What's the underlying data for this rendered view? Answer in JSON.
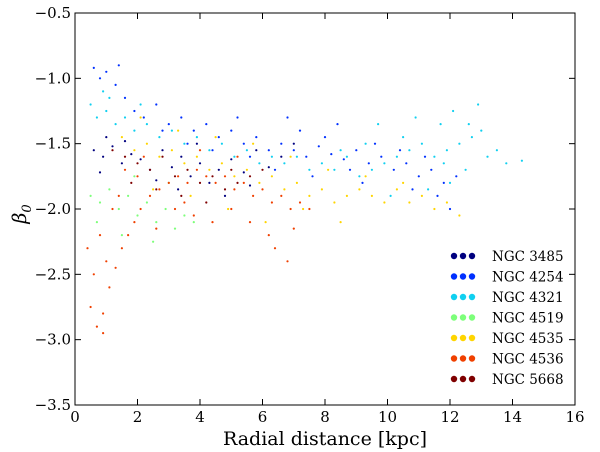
{
  "chart_data": {
    "type": "scatter",
    "title": "",
    "xlabel": "Radial distance [kpc]",
    "ylabel_symbol": "β",
    "ylabel_subscript": "0",
    "xlim": [
      0,
      16
    ],
    "ylim": [
      -3.5,
      -0.5
    ],
    "xticks": [
      0,
      2,
      4,
      6,
      8,
      10,
      12,
      14,
      16
    ],
    "yticks": [
      -0.5,
      -1.0,
      -1.5,
      -2.0,
      -2.5,
      -3.0,
      -3.5
    ],
    "xtick_labels": [
      "0",
      "2",
      "4",
      "6",
      "8",
      "10",
      "12",
      "14",
      "16"
    ],
    "ytick_labels": [
      "−0.5",
      "−1.0",
      "−1.5",
      "−2.0",
      "−2.5",
      "−3.0",
      "−3.5"
    ],
    "legend_position": "lower-right",
    "series": [
      {
        "name": "NGC 3485",
        "color": "#00007f",
        "points": [
          [
            0.6,
            -1.55
          ],
          [
            0.9,
            -1.6
          ],
          [
            1.2,
            -1.52
          ],
          [
            1.5,
            -1.65
          ],
          [
            1.8,
            -1.58
          ],
          [
            2.1,
            -1.62
          ],
          [
            2.4,
            -1.7
          ],
          [
            2.8,
            -1.55
          ],
          [
            3.1,
            -1.68
          ],
          [
            3.4,
            -1.6
          ],
          [
            3.7,
            -1.75
          ],
          [
            4.0,
            -1.65
          ],
          [
            4.3,
            -1.8
          ],
          [
            4.6,
            -1.7
          ],
          [
            5.0,
            -1.62
          ],
          [
            5.4,
            -1.72
          ],
          [
            5.8,
            -1.55
          ],
          [
            6.2,
            -1.68
          ],
          [
            6.6,
            -1.6
          ],
          [
            7.0,
            -1.5
          ],
          [
            1.0,
            -1.45
          ],
          [
            1.6,
            -1.48
          ],
          [
            2.6,
            -1.78
          ],
          [
            3.3,
            -1.85
          ],
          [
            4.8,
            -1.9
          ],
          [
            0.8,
            -1.72
          ],
          [
            3.9,
            -1.5
          ],
          [
            5.6,
            -1.82
          ]
        ]
      },
      {
        "name": "NGC 4254",
        "color": "#0030ff",
        "points": [
          [
            0.6,
            -0.92
          ],
          [
            0.8,
            -1.0
          ],
          [
            1.0,
            -0.95
          ],
          [
            1.3,
            -1.05
          ],
          [
            1.6,
            -1.15
          ],
          [
            1.9,
            -1.25
          ],
          [
            2.2,
            -1.3
          ],
          [
            2.6,
            -1.2
          ],
          [
            3.0,
            -1.35
          ],
          [
            3.4,
            -1.3
          ],
          [
            3.8,
            -1.4
          ],
          [
            4.2,
            -1.35
          ],
          [
            4.6,
            -1.45
          ],
          [
            5.0,
            -1.4
          ],
          [
            5.4,
            -1.5
          ],
          [
            5.8,
            -1.45
          ],
          [
            6.2,
            -1.55
          ],
          [
            6.6,
            -1.5
          ],
          [
            7.0,
            -1.55
          ],
          [
            7.4,
            -1.6
          ],
          [
            7.8,
            -1.52
          ],
          [
            8.2,
            -1.58
          ],
          [
            8.6,
            -1.62
          ],
          [
            9.0,
            -1.55
          ],
          [
            9.4,
            -1.65
          ],
          [
            9.8,
            -1.6
          ],
          [
            10.2,
            -1.7
          ],
          [
            10.6,
            -1.65
          ],
          [
            11.0,
            -1.75
          ],
          [
            11.4,
            -1.7
          ],
          [
            11.8,
            -1.8
          ],
          [
            12.2,
            -1.75
          ],
          [
            6.4,
            -1.7
          ],
          [
            7.2,
            -1.4
          ],
          [
            8.0,
            -1.45
          ],
          [
            8.8,
            -1.7
          ],
          [
            9.6,
            -1.5
          ],
          [
            10.4,
            -1.55
          ],
          [
            11.2,
            -1.6
          ],
          [
            11.6,
            -1.9
          ],
          [
            12.0,
            -2.0
          ],
          [
            5.2,
            -1.3
          ],
          [
            4.4,
            -1.55
          ],
          [
            3.6,
            -1.5
          ],
          [
            2.8,
            -1.4
          ],
          [
            1.4,
            -0.9
          ],
          [
            7.6,
            -1.75
          ],
          [
            8.4,
            -1.35
          ],
          [
            9.2,
            -1.8
          ],
          [
            10.8,
            -1.85
          ],
          [
            6.8,
            -1.3
          ],
          [
            5.6,
            -1.6
          ]
        ]
      },
      {
        "name": "NGC 4321",
        "color": "#10d0f0",
        "points": [
          [
            0.5,
            -1.2
          ],
          [
            0.7,
            -1.3
          ],
          [
            1.0,
            -1.25
          ],
          [
            1.3,
            -1.35
          ],
          [
            1.6,
            -1.3
          ],
          [
            1.9,
            -1.4
          ],
          [
            2.3,
            -1.35
          ],
          [
            2.7,
            -1.45
          ],
          [
            3.1,
            -1.4
          ],
          [
            3.5,
            -1.5
          ],
          [
            3.9,
            -1.45
          ],
          [
            4.3,
            -1.55
          ],
          [
            4.7,
            -1.5
          ],
          [
            5.1,
            -1.6
          ],
          [
            5.5,
            -1.55
          ],
          [
            5.9,
            -1.65
          ],
          [
            6.3,
            -1.6
          ],
          [
            6.7,
            -1.65
          ],
          [
            7.1,
            -1.6
          ],
          [
            7.5,
            -1.7
          ],
          [
            7.9,
            -1.65
          ],
          [
            8.3,
            -1.7
          ],
          [
            8.7,
            -1.6
          ],
          [
            9.1,
            -1.75
          ],
          [
            9.5,
            -1.7
          ],
          [
            9.9,
            -1.65
          ],
          [
            10.3,
            -1.6
          ],
          [
            10.7,
            -1.55
          ],
          [
            11.1,
            -1.5
          ],
          [
            11.5,
            -1.6
          ],
          [
            11.9,
            -1.55
          ],
          [
            12.3,
            -1.5
          ],
          [
            12.7,
            -1.45
          ],
          [
            13.0,
            -1.4
          ],
          [
            12.5,
            -1.7
          ],
          [
            12.0,
            -1.8
          ],
          [
            11.7,
            -1.35
          ],
          [
            10.9,
            -1.3
          ],
          [
            10.5,
            -1.45
          ],
          [
            9.7,
            -1.35
          ],
          [
            9.3,
            -1.5
          ],
          [
            8.5,
            -1.55
          ],
          [
            13.2,
            -1.6
          ],
          [
            12.9,
            -1.2
          ],
          [
            12.1,
            -1.25
          ],
          [
            11.3,
            -1.85
          ],
          [
            10.1,
            -1.9
          ],
          [
            14.3,
            -1.63
          ],
          [
            13.5,
            -1.55
          ],
          [
            13.8,
            -1.65
          ],
          [
            1.1,
            -1.15
          ],
          [
            2.1,
            -1.2
          ],
          [
            0.9,
            -1.1
          ],
          [
            12.6,
            -1.35
          ],
          [
            11.8,
            -1.65
          ]
        ]
      },
      {
        "name": "NGC 4519",
        "color": "#7dff7a",
        "points": [
          [
            0.5,
            -1.9
          ],
          [
            0.8,
            -1.95
          ],
          [
            1.1,
            -1.85
          ],
          [
            1.4,
            -2.0
          ],
          [
            1.7,
            -1.9
          ],
          [
            2.0,
            -2.05
          ],
          [
            2.3,
            -1.95
          ],
          [
            2.6,
            -2.1
          ],
          [
            2.9,
            -2.0
          ],
          [
            3.2,
            -2.15
          ],
          [
            3.5,
            -2.05
          ],
          [
            3.8,
            -2.1
          ],
          [
            0.7,
            -2.1
          ],
          [
            1.5,
            -2.2
          ],
          [
            2.5,
            -2.25
          ],
          [
            3.0,
            -1.8
          ],
          [
            1.9,
            -1.75
          ]
        ]
      },
      {
        "name": "NGC 4535",
        "color": "#ffd500",
        "points": [
          [
            1.5,
            -1.45
          ],
          [
            1.9,
            -1.55
          ],
          [
            2.3,
            -1.5
          ],
          [
            2.7,
            -1.6
          ],
          [
            3.1,
            -1.55
          ],
          [
            3.5,
            -1.65
          ],
          [
            3.9,
            -1.6
          ],
          [
            4.3,
            -1.7
          ],
          [
            4.7,
            -1.65
          ],
          [
            5.1,
            -1.75
          ],
          [
            5.5,
            -1.7
          ],
          [
            5.9,
            -1.8
          ],
          [
            6.3,
            -1.75
          ],
          [
            6.7,
            -1.85
          ],
          [
            7.1,
            -1.8
          ],
          [
            7.5,
            -1.9
          ],
          [
            7.9,
            -1.85
          ],
          [
            8.3,
            -1.95
          ],
          [
            8.7,
            -1.9
          ],
          [
            9.1,
            -1.85
          ],
          [
            9.5,
            -1.9
          ],
          [
            9.9,
            -1.95
          ],
          [
            10.3,
            -1.85
          ],
          [
            10.7,
            -1.95
          ],
          [
            11.1,
            -1.9
          ],
          [
            11.5,
            -2.0
          ],
          [
            11.9,
            -1.95
          ],
          [
            12.3,
            -2.05
          ],
          [
            2.1,
            -1.3
          ],
          [
            3.3,
            -1.4
          ],
          [
            4.5,
            -1.45
          ],
          [
            5.7,
            -1.5
          ],
          [
            6.9,
            -1.6
          ],
          [
            8.1,
            -1.7
          ],
          [
            9.3,
            -1.75
          ],
          [
            10.5,
            -1.8
          ],
          [
            4.9,
            -2.0
          ],
          [
            6.1,
            -2.1
          ],
          [
            7.3,
            -2.0
          ],
          [
            8.5,
            -2.1
          ],
          [
            3.7,
            -1.9
          ],
          [
            2.5,
            -1.85
          ]
        ]
      },
      {
        "name": "NGC 4536",
        "color": "#f04000",
        "points": [
          [
            0.4,
            -2.3
          ],
          [
            0.6,
            -2.5
          ],
          [
            0.5,
            -2.75
          ],
          [
            0.7,
            -2.9
          ],
          [
            0.9,
            -2.8
          ],
          [
            1.1,
            -2.6
          ],
          [
            1.3,
            -2.45
          ],
          [
            1.5,
            -2.3
          ],
          [
            1.7,
            -2.2
          ],
          [
            1.9,
            -2.1
          ],
          [
            2.1,
            -2.0
          ],
          [
            2.4,
            -1.9
          ],
          [
            2.7,
            -1.85
          ],
          [
            3.0,
            -1.8
          ],
          [
            3.3,
            -1.75
          ],
          [
            3.6,
            -1.8
          ],
          [
            3.9,
            -1.7
          ],
          [
            4.2,
            -1.75
          ],
          [
            4.5,
            -1.8
          ],
          [
            4.8,
            -1.75
          ],
          [
            5.1,
            -1.85
          ],
          [
            5.4,
            -1.8
          ],
          [
            5.7,
            -1.9
          ],
          [
            6.0,
            -1.85
          ],
          [
            6.3,
            -1.95
          ],
          [
            6.6,
            -1.9
          ],
          [
            6.9,
            -2.0
          ],
          [
            7.2,
            -1.95
          ],
          [
            7.5,
            -2.0
          ],
          [
            1.2,
            -2.0
          ],
          [
            1.6,
            -1.7
          ],
          [
            2.0,
            -1.75
          ],
          [
            2.6,
            -2.15
          ],
          [
            3.2,
            -2.0
          ],
          [
            3.8,
            -2.05
          ],
          [
            4.4,
            -2.1
          ],
          [
            5.0,
            -2.0
          ],
          [
            5.6,
            -2.1
          ],
          [
            6.2,
            -2.2
          ],
          [
            6.8,
            -2.4
          ],
          [
            0.8,
            -2.2
          ],
          [
            1.0,
            -2.4
          ],
          [
            0.9,
            -2.95
          ],
          [
            1.4,
            -1.9
          ],
          [
            2.2,
            -1.6
          ],
          [
            4.0,
            -1.55
          ],
          [
            5.2,
            -1.6
          ],
          [
            6.4,
            -2.3
          ],
          [
            7.0,
            -2.15
          ],
          [
            3.5,
            -1.95
          ]
        ]
      },
      {
        "name": "NGC 5668",
        "color": "#7f0000",
        "points": [
          [
            1.2,
            -1.55
          ],
          [
            1.6,
            -1.6
          ],
          [
            2.0,
            -1.65
          ],
          [
            2.4,
            -1.7
          ],
          [
            2.8,
            -1.6
          ],
          [
            3.2,
            -1.75
          ],
          [
            3.6,
            -1.7
          ],
          [
            4.0,
            -1.8
          ],
          [
            4.4,
            -1.75
          ],
          [
            4.8,
            -1.85
          ],
          [
            5.2,
            -1.8
          ],
          [
            5.6,
            -1.75
          ],
          [
            6.0,
            -1.7
          ],
          [
            1.8,
            -1.8
          ],
          [
            2.6,
            -1.85
          ],
          [
            3.4,
            -1.9
          ],
          [
            4.2,
            -1.95
          ],
          [
            5.0,
            -1.7
          ]
        ]
      }
    ]
  }
}
